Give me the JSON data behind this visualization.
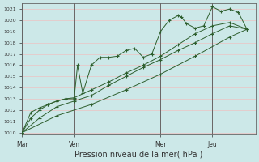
{
  "xlabel": "Pression niveau de la mer( hPa )",
  "bg_color": "#cce8e8",
  "grid_color": "#e8c8c8",
  "line_color": "#2d5e2d",
  "ylim": [
    1009.8,
    1021.5
  ],
  "yticks": [
    1010,
    1011,
    1012,
    1013,
    1014,
    1015,
    1016,
    1017,
    1018,
    1019,
    1020,
    1021
  ],
  "day_labels": [
    "Mar",
    "Ven",
    "Mer",
    "Jeu"
  ],
  "day_positions": [
    0.0,
    30.0,
    80.0,
    110.0
  ],
  "xlim": [
    0,
    135
  ],
  "series1_x": [
    0,
    5,
    10,
    15,
    20,
    25,
    30,
    32,
    35,
    40,
    45,
    50,
    55,
    60,
    65,
    70,
    75,
    80,
    85,
    90,
    92,
    95,
    100,
    105,
    110,
    115,
    120,
    125,
    130
  ],
  "series1_y": [
    1010.0,
    1011.8,
    1012.2,
    1012.5,
    1012.8,
    1013.0,
    1013.0,
    1016.0,
    1013.5,
    1016.0,
    1016.7,
    1016.7,
    1016.8,
    1017.3,
    1017.5,
    1016.7,
    1017.0,
    1019.0,
    1020.0,
    1020.4,
    1020.3,
    1019.7,
    1019.3,
    1019.5,
    1021.2,
    1020.8,
    1021.0,
    1020.7,
    1019.2
  ],
  "series2_x": [
    0,
    5,
    10,
    15,
    20,
    25,
    30,
    40,
    50,
    60,
    70,
    80,
    90,
    100,
    110,
    120,
    130
  ],
  "series2_y": [
    1010.0,
    1011.3,
    1012.0,
    1012.5,
    1012.8,
    1013.0,
    1013.1,
    1013.8,
    1014.5,
    1015.3,
    1016.0,
    1016.8,
    1017.8,
    1018.8,
    1019.5,
    1019.8,
    1019.2
  ],
  "series3_x": [
    0,
    10,
    20,
    30,
    40,
    50,
    60,
    70,
    80,
    90,
    100,
    110,
    120,
    130
  ],
  "series3_y": [
    1010.0,
    1011.3,
    1012.3,
    1012.8,
    1013.3,
    1014.2,
    1015.0,
    1015.8,
    1016.5,
    1017.3,
    1018.0,
    1018.8,
    1019.5,
    1019.2
  ],
  "series4_x": [
    0,
    20,
    40,
    60,
    80,
    100,
    120,
    130
  ],
  "series4_y": [
    1010.0,
    1011.5,
    1012.5,
    1013.8,
    1015.2,
    1016.8,
    1018.5,
    1019.2
  ]
}
